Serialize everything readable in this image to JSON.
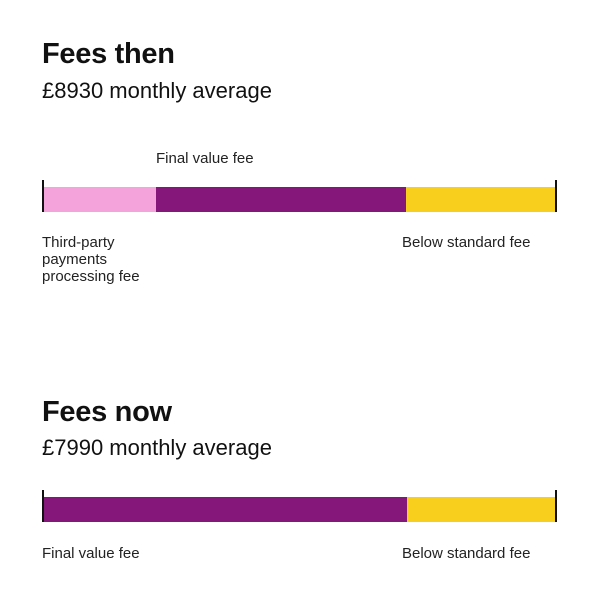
{
  "colors": {
    "third_party": "#F5A3DB",
    "final_value": "#86177A",
    "below_standard": "#F9CF1E",
    "edge": "#111111"
  },
  "chart_data": [
    {
      "type": "bar",
      "orientation": "horizontal-stacked",
      "title": "Fees then",
      "subtitle": "£8930 monthly average",
      "segments": [
        {
          "name": "Third-party payments processing fee",
          "share": 0.22,
          "color_key": "third_party"
        },
        {
          "name": "Final value fee",
          "share": 0.49,
          "color_key": "final_value"
        },
        {
          "name": "Below standard fee",
          "share": 0.29,
          "color_key": "below_standard"
        }
      ],
      "labels": {
        "third_party": "Third-party\npayments\nprocessing fee",
        "final_value": "Final value fee",
        "below_standard": "Below standard fee"
      }
    },
    {
      "type": "bar",
      "orientation": "horizontal-stacked",
      "title": "Fees now",
      "subtitle": "£7990 monthly average",
      "segments": [
        {
          "name": "Final value fee",
          "share": 0.71,
          "color_key": "final_value"
        },
        {
          "name": "Below standard fee",
          "share": 0.29,
          "color_key": "below_standard"
        }
      ],
      "labels": {
        "final_value": "Final value fee",
        "below_standard": "Below standard fee"
      }
    }
  ]
}
